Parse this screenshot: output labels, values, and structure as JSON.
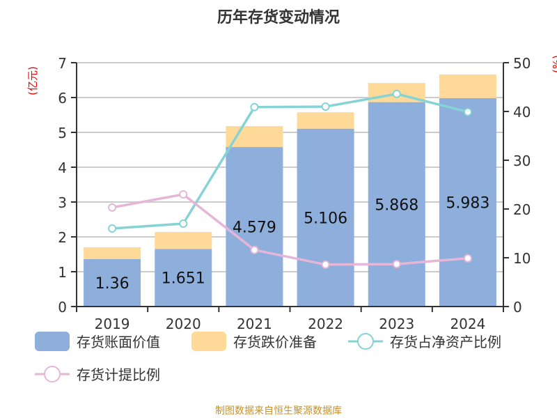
{
  "chart_data": {
    "type": "bar",
    "title": "历年存货变动情况",
    "categories": [
      "2019",
      "2020",
      "2021",
      "2022",
      "2023",
      "2024"
    ],
    "left_axis": {
      "unit_label": "(亿元)",
      "ylim": [
        0,
        7
      ],
      "ticks": [
        0,
        1,
        2,
        3,
        4,
        5,
        6,
        7
      ]
    },
    "right_axis": {
      "unit_label": "(%)",
      "ylim": [
        0,
        50
      ],
      "ticks": [
        0,
        10,
        20,
        30,
        40,
        50
      ]
    },
    "grid": true,
    "legend_placement": "bottom",
    "series": [
      {
        "name": "存货账面价值",
        "type": "bar",
        "stack": "a",
        "axis": "left",
        "color": "#8eaedb",
        "values": [
          1.36,
          1.651,
          4.579,
          5.106,
          5.868,
          5.983
        ],
        "data_labels": [
          "1.36",
          "1.651",
          "4.579",
          "5.106",
          "5.868",
          "5.983"
        ]
      },
      {
        "name": "存货跌价准备",
        "type": "bar",
        "stack": "a",
        "axis": "left",
        "color": "#ffd998",
        "values": [
          0.34,
          0.49,
          0.6,
          0.47,
          0.55,
          0.68
        ]
      },
      {
        "name": "存货占净资产比例",
        "type": "line",
        "axis": "right",
        "color": "#86d3d5",
        "values": [
          16.0,
          17.0,
          40.9,
          41.0,
          43.6,
          39.9
        ]
      },
      {
        "name": "存货计提比例",
        "type": "line",
        "axis": "right",
        "color": "#e6b6d8",
        "values": [
          20.3,
          23.0,
          11.6,
          8.6,
          8.7,
          9.9
        ]
      }
    ]
  },
  "source": "制图数据来自恒生聚源数据库"
}
